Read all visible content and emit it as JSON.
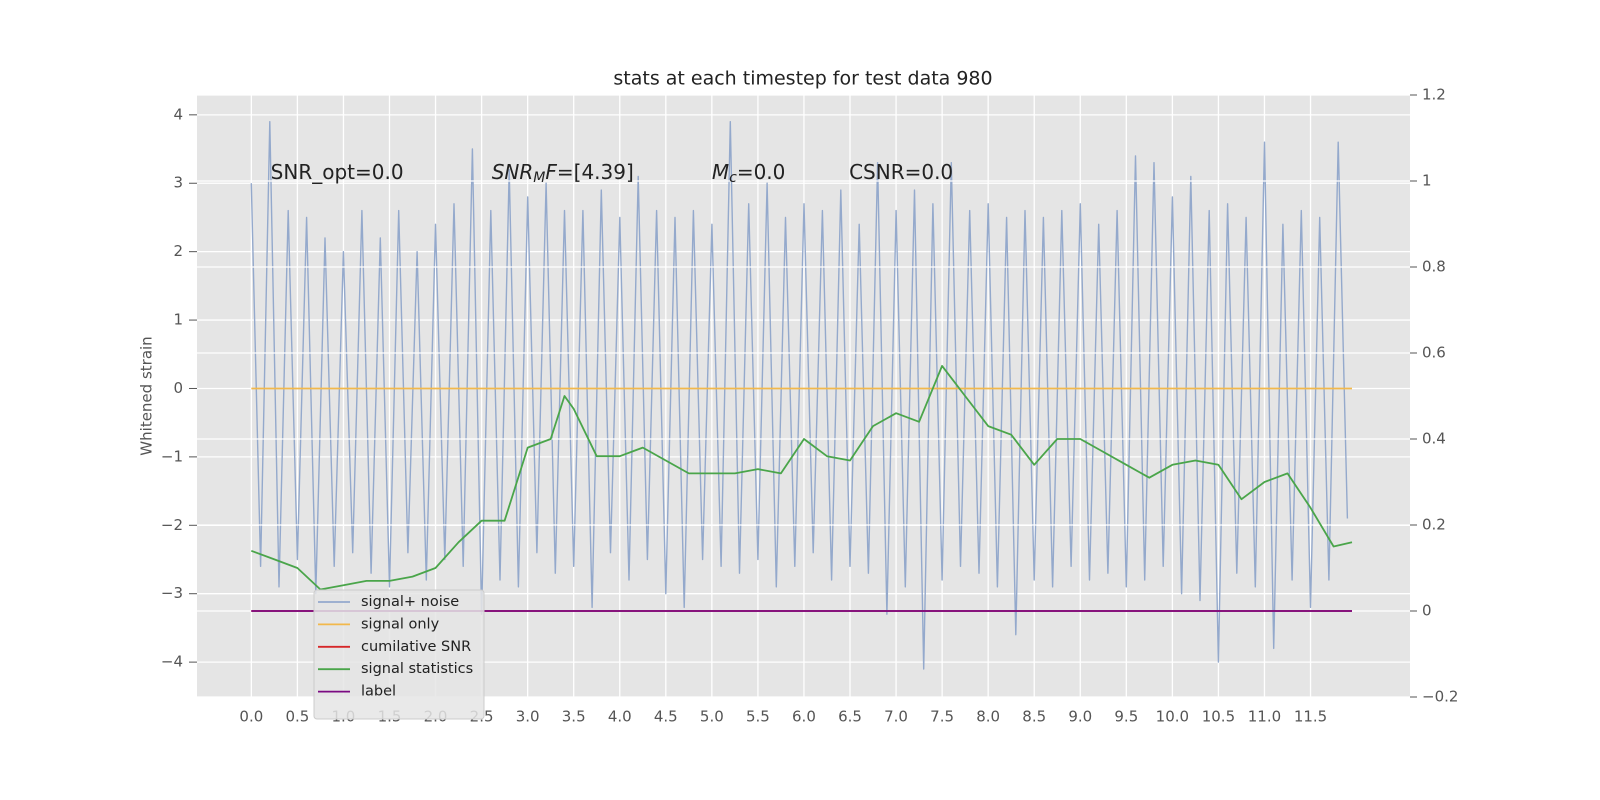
{
  "chart_data": {
    "type": "line",
    "title": "stats at each timestep for test data 980",
    "ylabel": "Whitened strain",
    "xlim": [
      -0.59,
      12.58
    ],
    "ylim": [
      -4.51,
      4.29
    ],
    "y2lim": [
      -0.2,
      1.2
    ],
    "xticks": [
      {
        "value": 0,
        "label": "0.0"
      },
      {
        "value": 0.5,
        "label": "0.5"
      },
      {
        "value": 1,
        "label": "1.0"
      },
      {
        "value": 1.5,
        "label": "1.5"
      },
      {
        "value": 2,
        "label": "2.0"
      },
      {
        "value": 2.5,
        "label": "2.5"
      },
      {
        "value": 3,
        "label": "3.0"
      },
      {
        "value": 3.5,
        "label": "3.5"
      },
      {
        "value": 4,
        "label": "4.0"
      },
      {
        "value": 4.5,
        "label": "4.5"
      },
      {
        "value": 5,
        "label": "5.0"
      },
      {
        "value": 5.5,
        "label": "5.5"
      },
      {
        "value": 6,
        "label": "6.0"
      },
      {
        "value": 6.5,
        "label": "6.5"
      },
      {
        "value": 7,
        "label": "7.0"
      },
      {
        "value": 7.5,
        "label": "7.5"
      },
      {
        "value": 8,
        "label": "8.0"
      },
      {
        "value": 8.5,
        "label": "8.5"
      },
      {
        "value": 9,
        "label": "9.0"
      },
      {
        "value": 9.5,
        "label": "9.5"
      },
      {
        "value": 10,
        "label": "10.0"
      },
      {
        "value": 10.5,
        "label": "10.5"
      },
      {
        "value": 11,
        "label": "11.0"
      },
      {
        "value": 11.5,
        "label": "11.5"
      }
    ],
    "yticks": [
      {
        "value": -4,
        "label": "−4"
      },
      {
        "value": -3,
        "label": "−3"
      },
      {
        "value": -2,
        "label": "−2"
      },
      {
        "value": -1,
        "label": "−1"
      },
      0,
      1,
      2,
      3,
      4
    ],
    "y2ticks": [
      {
        "value": -0.2,
        "label": "−0.2"
      },
      0.0,
      0.2,
      0.4,
      0.6,
      0.8,
      1.0,
      1.2
    ],
    "grid": true,
    "legend": "lower left",
    "annotations": [
      {
        "x": 0.21,
        "y": 3.15,
        "parts": [
          {
            "text": "SNR_opt=0.0",
            "style": "plain"
          }
        ]
      },
      {
        "x": 2.61,
        "y": 3.15,
        "parts": [
          {
            "text": "SNR",
            "style": "italic"
          },
          {
            "text": "M",
            "style": "sub"
          },
          {
            "text": "F",
            "style": "italic"
          },
          {
            "text": "=[4.39]",
            "style": "plain"
          }
        ]
      },
      {
        "x": 5.0,
        "y": 3.15,
        "parts": [
          {
            "text": "M",
            "style": "italic"
          },
          {
            "text": "c",
            "style": "sub"
          },
          {
            "text": "=0.0",
            "style": "plain"
          }
        ]
      },
      {
        "x": 6.49,
        "y": 3.15,
        "parts": [
          {
            "text": "CSNR=0.0",
            "style": "plain"
          }
        ]
      }
    ],
    "series": [
      {
        "name": "signal+ noise",
        "color": "#94a9cc",
        "axis": "y",
        "x": [
          0.0,
          0.1,
          0.2,
          0.3,
          0.4,
          0.5,
          0.6,
          0.7,
          0.8,
          0.9,
          1.0,
          1.1,
          1.2,
          1.3,
          1.4,
          1.5,
          1.6,
          1.7,
          1.8,
          1.9,
          2.0,
          2.1,
          2.2,
          2.3,
          2.4,
          2.5,
          2.6,
          2.7,
          2.8,
          2.9,
          3.0,
          3.1,
          3.2,
          3.3,
          3.4,
          3.5,
          3.6,
          3.7,
          3.8,
          3.9,
          4.0,
          4.1,
          4.2,
          4.3,
          4.4,
          4.5,
          4.6,
          4.7,
          4.8,
          4.9,
          5.0,
          5.1,
          5.2,
          5.3,
          5.4,
          5.5,
          5.6,
          5.7,
          5.8,
          5.9,
          6.0,
          6.1,
          6.2,
          6.3,
          6.4,
          6.5,
          6.6,
          6.7,
          6.8,
          6.9,
          7.0,
          7.1,
          7.2,
          7.3,
          7.4,
          7.5,
          7.6,
          7.7,
          7.8,
          7.9,
          8.0,
          8.1,
          8.2,
          8.3,
          8.4,
          8.5,
          8.6,
          8.7,
          8.8,
          8.9,
          9.0,
          9.1,
          9.2,
          9.3,
          9.4,
          9.5,
          9.6,
          9.7,
          9.8,
          9.9,
          10.0,
          10.1,
          10.2,
          10.3,
          10.4,
          10.5,
          10.6,
          10.7,
          10.8,
          10.9,
          11.0,
          11.1,
          11.2,
          11.3,
          11.4,
          11.5,
          11.6,
          11.7,
          11.8,
          11.9
        ],
        "values": [
          3.0,
          -2.6,
          3.9,
          -2.9,
          2.6,
          -2.5,
          2.5,
          -3.0,
          2.2,
          -2.6,
          2.0,
          -2.4,
          2.6,
          -2.7,
          2.2,
          -2.9,
          2.6,
          -2.4,
          2.0,
          -2.8,
          2.4,
          -2.5,
          2.7,
          -2.6,
          3.5,
          -3.3,
          2.6,
          -2.8,
          3.2,
          -2.9,
          2.8,
          -2.4,
          3.0,
          -2.7,
          2.6,
          -2.6,
          2.6,
          -3.2,
          2.9,
          -2.4,
          2.5,
          -2.8,
          3.1,
          -2.5,
          2.6,
          -3.0,
          2.5,
          -3.2,
          2.6,
          -2.5,
          2.4,
          -2.6,
          3.9,
          -2.7,
          2.7,
          -2.5,
          3.0,
          -2.9,
          2.5,
          -2.6,
          2.7,
          -2.4,
          2.6,
          -2.8,
          2.9,
          -2.6,
          2.4,
          -2.7,
          3.3,
          -3.3,
          2.6,
          -2.9,
          2.9,
          -4.1,
          2.7,
          -2.8,
          3.3,
          -2.6,
          2.6,
          -2.7,
          2.7,
          -2.9,
          2.5,
          -3.6,
          2.6,
          -2.8,
          2.5,
          -2.9,
          2.6,
          -2.6,
          2.7,
          -2.8,
          2.4,
          -2.7,
          2.6,
          -2.9,
          3.4,
          -2.8,
          3.3,
          -2.6,
          2.8,
          -3.0,
          3.1,
          -3.1,
          2.6,
          -4.0,
          2.7,
          -2.7,
          2.5,
          -2.9,
          3.6,
          -3.8,
          2.4,
          -2.8,
          2.6,
          -3.2,
          2.5,
          -2.8,
          3.6,
          -1.9
        ]
      },
      {
        "name": "signal only",
        "color": "#f2b84b",
        "axis": "y",
        "x": [
          0,
          11.95
        ],
        "values": [
          0,
          0
        ]
      },
      {
        "name": "cumilative SNR",
        "color": "#d62728",
        "axis": "y2",
        "x": [
          0,
          11.95
        ],
        "values": [
          0,
          0
        ]
      },
      {
        "name": "signal statistics",
        "color": "#4aa54a",
        "axis": "y2",
        "x": [
          0.0,
          0.25,
          0.5,
          0.75,
          1.0,
          1.25,
          1.5,
          1.75,
          2.0,
          2.25,
          2.5,
          2.75,
          3.0,
          3.25,
          3.4,
          3.5,
          3.75,
          4.0,
          4.25,
          4.5,
          4.75,
          5.0,
          5.25,
          5.5,
          5.75,
          6.0,
          6.25,
          6.5,
          6.75,
          7.0,
          7.25,
          7.5,
          7.75,
          8.0,
          8.25,
          8.5,
          8.75,
          9.0,
          9.25,
          9.5,
          9.75,
          10.0,
          10.25,
          10.5,
          10.75,
          11.0,
          11.25,
          11.5,
          11.75,
          11.95
        ],
        "values": [
          0.14,
          0.12,
          0.1,
          0.05,
          0.06,
          0.07,
          0.07,
          0.08,
          0.1,
          0.16,
          0.21,
          0.21,
          0.38,
          0.4,
          0.5,
          0.47,
          0.36,
          0.36,
          0.38,
          0.35,
          0.32,
          0.32,
          0.32,
          0.33,
          0.32,
          0.4,
          0.36,
          0.35,
          0.43,
          0.46,
          0.44,
          0.57,
          0.5,
          0.43,
          0.41,
          0.34,
          0.4,
          0.4,
          0.37,
          0.34,
          0.31,
          0.34,
          0.35,
          0.34,
          0.26,
          0.3,
          0.32,
          0.24,
          0.15,
          0.16
        ]
      },
      {
        "name": "label",
        "color": "#7b0a82",
        "axis": "y2",
        "x": [
          0,
          11.95
        ],
        "values": [
          0,
          0
        ]
      }
    ]
  }
}
